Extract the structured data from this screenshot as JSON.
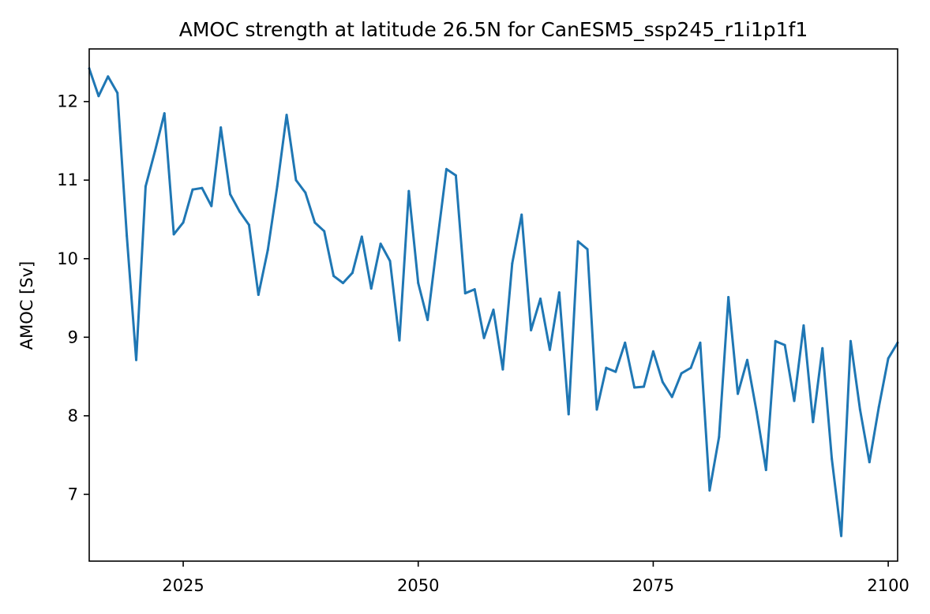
{
  "chart_data": {
    "type": "line",
    "title": "AMOC strength at latitude 26.5N for CanESM5_ssp245_r1i1p1f1",
    "xlabel": "",
    "ylabel": "AMOC [Sv]",
    "xlim": [
      2015,
      2101
    ],
    "ylim": [
      6.15,
      12.67
    ],
    "xticks": [
      2025,
      2050,
      2075,
      2100
    ],
    "yticks": [
      7,
      8,
      9,
      10,
      11,
      12
    ],
    "grid": false,
    "line_color": "#1f77b4",
    "series": [
      {
        "x": [
          2015,
          2016,
          2017,
          2018,
          2019,
          2020,
          2021,
          2022,
          2023,
          2024,
          2025,
          2026,
          2027,
          2028,
          2029,
          2030,
          2031,
          2032,
          2033,
          2034,
          2035,
          2036,
          2037,
          2038,
          2039,
          2040,
          2041,
          2042,
          2043,
          2044,
          2045,
          2046,
          2047,
          2048,
          2049,
          2050,
          2051,
          2052,
          2053,
          2054,
          2055,
          2056,
          2057,
          2058,
          2059,
          2060,
          2061,
          2062,
          2063,
          2064,
          2065,
          2066,
          2067,
          2068,
          2069,
          2070,
          2071,
          2072,
          2073,
          2074,
          2075,
          2076,
          2077,
          2078,
          2079,
          2080,
          2081,
          2082,
          2083,
          2084,
          2085,
          2086,
          2087,
          2088,
          2089,
          2090,
          2091,
          2092,
          2093,
          2094,
          2095,
          2096,
          2097,
          2098,
          2099,
          2100,
          2101
        ],
        "values": [
          12.42,
          12.07,
          12.32,
          12.11,
          10.29,
          8.71,
          10.92,
          11.37,
          11.85,
          10.31,
          10.46,
          10.88,
          10.9,
          10.67,
          11.67,
          10.82,
          10.6,
          10.43,
          9.54,
          10.11,
          10.92,
          11.83,
          11.0,
          10.84,
          10.46,
          10.35,
          9.78,
          9.69,
          9.82,
          10.28,
          9.62,
          10.19,
          9.97,
          8.96,
          10.86,
          9.69,
          9.22,
          10.19,
          11.14,
          11.06,
          9.56,
          9.61,
          8.99,
          9.35,
          8.59,
          9.94,
          10.56,
          9.09,
          9.49,
          8.84,
          9.57,
          8.02,
          10.22,
          10.12,
          8.08,
          8.61,
          8.56,
          8.93,
          8.36,
          8.37,
          8.82,
          8.43,
          8.24,
          8.54,
          8.61,
          8.93,
          7.05,
          7.73,
          9.51,
          8.28,
          8.71,
          8.05,
          7.31,
          8.95,
          8.9,
          8.19,
          9.15,
          7.92,
          8.86,
          7.45,
          6.47,
          8.95,
          8.08,
          7.41,
          8.11,
          8.73,
          8.93
        ]
      }
    ]
  }
}
